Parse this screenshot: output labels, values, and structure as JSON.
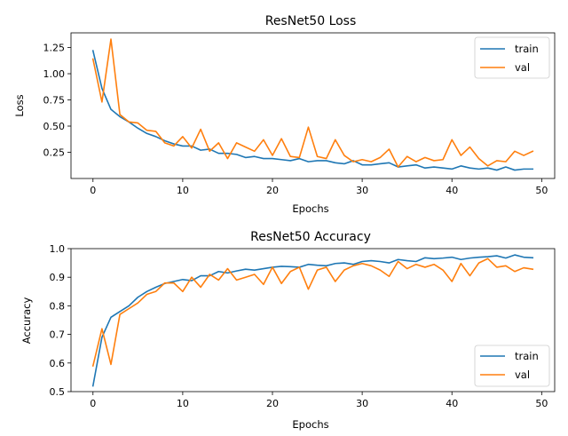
{
  "chart_data": [
    {
      "type": "line",
      "title": "ResNet50 Loss",
      "xlabel": "Epochs",
      "ylabel": "Loss",
      "xlim": [
        -2.45,
        51.45
      ],
      "ylim": [
        0.0,
        1.39
      ],
      "xticks": [
        0,
        10,
        20,
        30,
        40,
        50
      ],
      "yticks": [
        0.25,
        0.5,
        0.75,
        1.0,
        1.25
      ],
      "ytick_labels": [
        "0.25",
        "0.50",
        "0.75",
        "1.00",
        "1.25"
      ],
      "legend": "top-right",
      "x": [
        0,
        1,
        2,
        3,
        4,
        5,
        6,
        7,
        8,
        9,
        10,
        11,
        12,
        13,
        14,
        15,
        16,
        17,
        18,
        19,
        20,
        21,
        22,
        23,
        24,
        25,
        26,
        27,
        28,
        29,
        30,
        31,
        32,
        33,
        34,
        35,
        36,
        37,
        38,
        39,
        40,
        41,
        42,
        43,
        44,
        45,
        46,
        47,
        48,
        49
      ],
      "series": [
        {
          "name": "train",
          "color": "#1f77b4",
          "values": [
            1.22,
            0.86,
            0.66,
            0.59,
            0.54,
            0.48,
            0.43,
            0.4,
            0.36,
            0.33,
            0.31,
            0.31,
            0.27,
            0.28,
            0.24,
            0.24,
            0.23,
            0.2,
            0.21,
            0.19,
            0.19,
            0.18,
            0.17,
            0.19,
            0.16,
            0.17,
            0.17,
            0.15,
            0.14,
            0.17,
            0.13,
            0.13,
            0.14,
            0.15,
            0.11,
            0.12,
            0.13,
            0.1,
            0.11,
            0.1,
            0.09,
            0.12,
            0.1,
            0.09,
            0.1,
            0.08,
            0.11,
            0.08,
            0.09,
            0.09
          ]
        },
        {
          "name": "val",
          "color": "#ff7f0e",
          "values": [
            1.14,
            0.73,
            1.33,
            0.61,
            0.54,
            0.53,
            0.46,
            0.45,
            0.34,
            0.31,
            0.4,
            0.29,
            0.47,
            0.26,
            0.34,
            0.19,
            0.34,
            0.3,
            0.26,
            0.37,
            0.22,
            0.38,
            0.21,
            0.2,
            0.49,
            0.21,
            0.19,
            0.37,
            0.22,
            0.16,
            0.18,
            0.16,
            0.2,
            0.28,
            0.11,
            0.21,
            0.16,
            0.2,
            0.17,
            0.18,
            0.37,
            0.22,
            0.3,
            0.19,
            0.12,
            0.17,
            0.16,
            0.26,
            0.22,
            0.26
          ]
        }
      ]
    },
    {
      "type": "line",
      "title": "ResNet50 Accuracy",
      "xlabel": "Epochs",
      "ylabel": "Accuracy",
      "xlim": [
        -2.45,
        51.45
      ],
      "ylim": [
        0.5,
        1.0
      ],
      "xticks": [
        0,
        10,
        20,
        30,
        40,
        50
      ],
      "yticks": [
        0.5,
        0.6,
        0.7,
        0.8,
        0.9,
        1.0
      ],
      "ytick_labels": [
        "0.5",
        "0.6",
        "0.7",
        "0.8",
        "0.9",
        "1.0"
      ],
      "legend": "bottom-right",
      "x": [
        0,
        1,
        2,
        3,
        4,
        5,
        6,
        7,
        8,
        9,
        10,
        11,
        12,
        13,
        14,
        15,
        16,
        17,
        18,
        19,
        20,
        21,
        22,
        23,
        24,
        25,
        26,
        27,
        28,
        29,
        30,
        31,
        32,
        33,
        34,
        35,
        36,
        37,
        38,
        39,
        40,
        41,
        42,
        43,
        44,
        45,
        46,
        47,
        48,
        49
      ],
      "series": [
        {
          "name": "train",
          "color": "#1f77b4",
          "values": [
            0.52,
            0.69,
            0.76,
            0.78,
            0.8,
            0.83,
            0.85,
            0.865,
            0.878,
            0.885,
            0.892,
            0.888,
            0.905,
            0.905,
            0.92,
            0.915,
            0.922,
            0.928,
            0.925,
            0.93,
            0.935,
            0.938,
            0.937,
            0.935,
            0.945,
            0.942,
            0.94,
            0.948,
            0.95,
            0.945,
            0.955,
            0.958,
            0.955,
            0.95,
            0.962,
            0.958,
            0.955,
            0.968,
            0.965,
            0.967,
            0.97,
            0.962,
            0.967,
            0.97,
            0.972,
            0.975,
            0.967,
            0.978,
            0.97,
            0.968
          ]
        },
        {
          "name": "val",
          "color": "#ff7f0e",
          "values": [
            0.59,
            0.72,
            0.595,
            0.77,
            0.79,
            0.81,
            0.84,
            0.85,
            0.88,
            0.88,
            0.85,
            0.9,
            0.865,
            0.91,
            0.89,
            0.93,
            0.89,
            0.9,
            0.91,
            0.875,
            0.935,
            0.878,
            0.92,
            0.935,
            0.858,
            0.925,
            0.935,
            0.885,
            0.925,
            0.94,
            0.948,
            0.94,
            0.925,
            0.903,
            0.955,
            0.93,
            0.945,
            0.935,
            0.945,
            0.925,
            0.885,
            0.948,
            0.905,
            0.95,
            0.965,
            0.935,
            0.94,
            0.92,
            0.933,
            0.928
          ]
        }
      ]
    }
  ]
}
